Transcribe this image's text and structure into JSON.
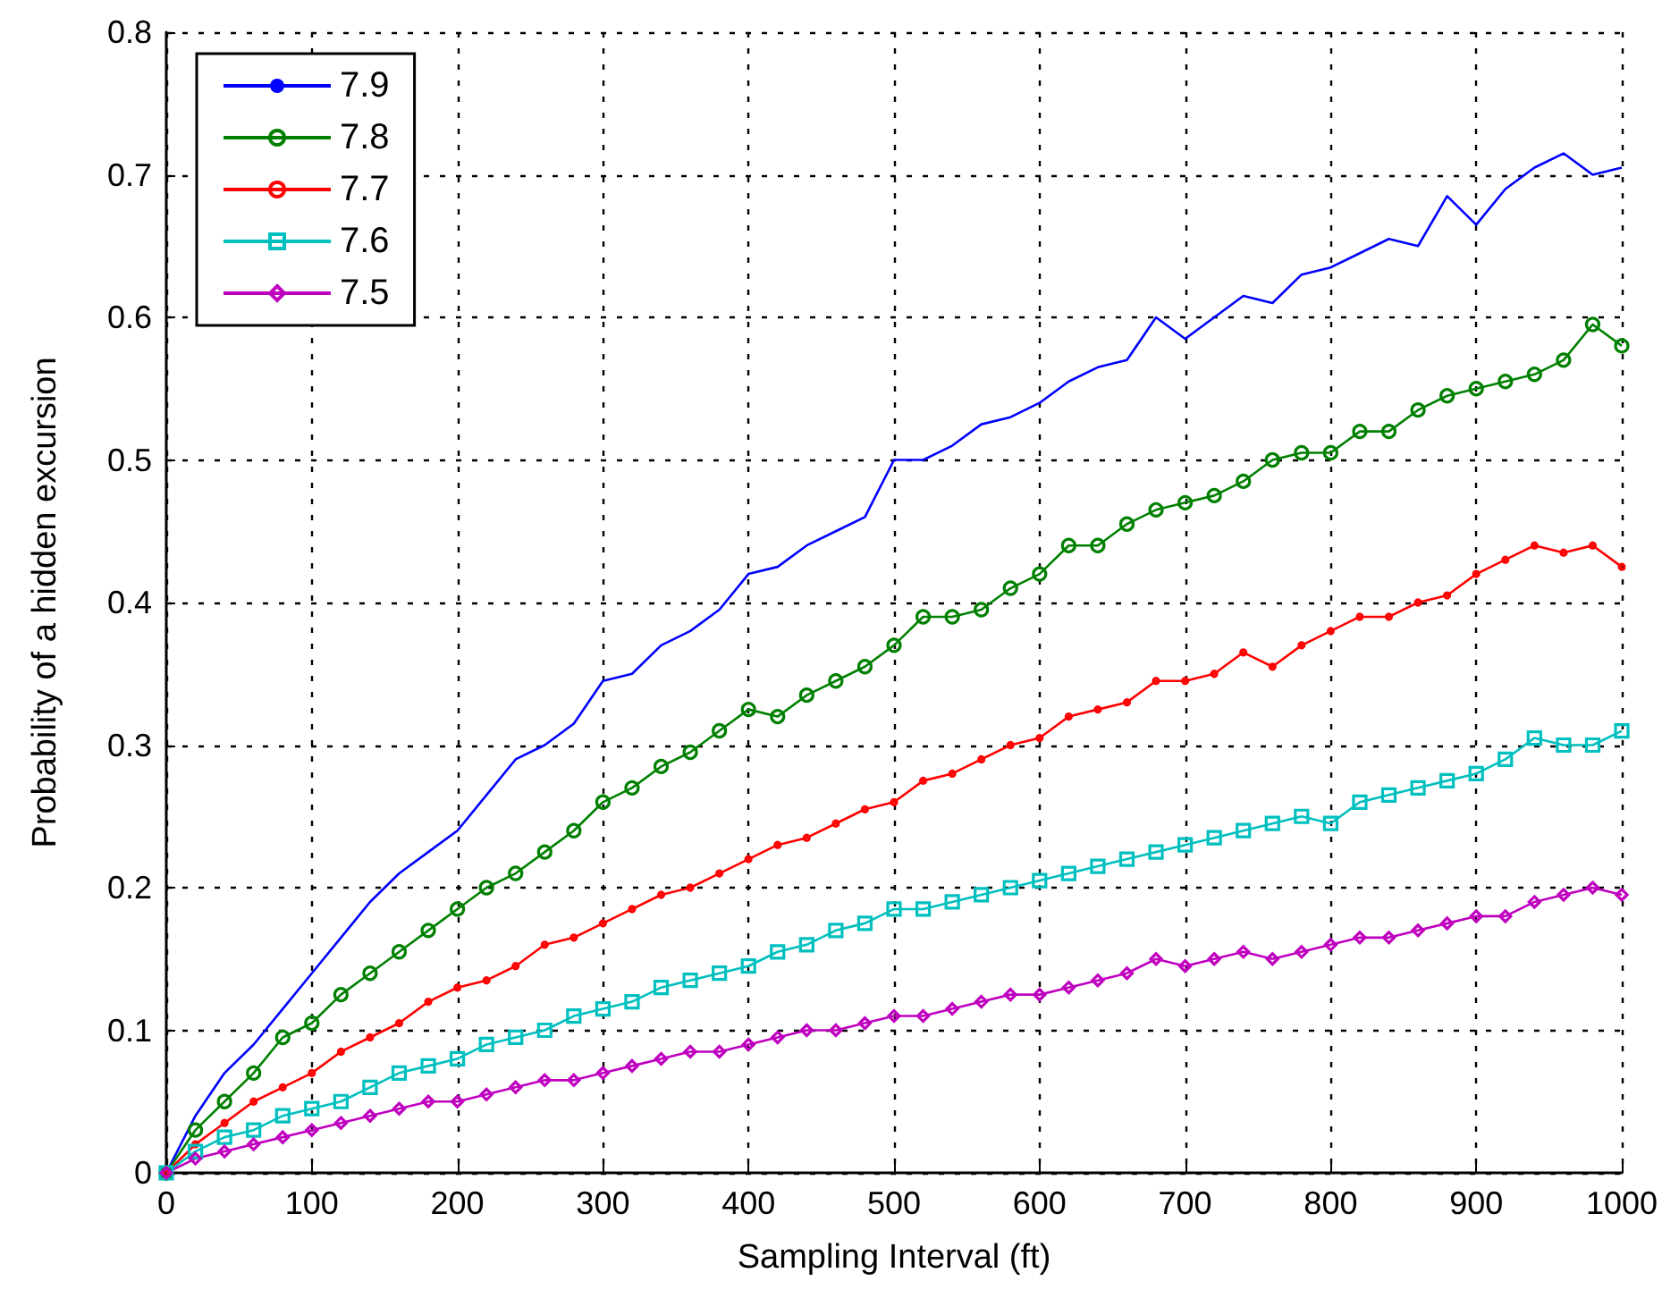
{
  "chart_data": {
    "type": "line",
    "xlabel": "Sampling Interval (ft)",
    "ylabel": "Probability of a hidden excursion",
    "x": [
      0,
      20,
      40,
      60,
      80,
      100,
      120,
      140,
      160,
      180,
      200,
      220,
      240,
      260,
      280,
      300,
      320,
      340,
      360,
      380,
      400,
      420,
      440,
      460,
      480,
      500,
      520,
      540,
      560,
      580,
      600,
      620,
      640,
      660,
      680,
      700,
      720,
      740,
      760,
      780,
      800,
      820,
      840,
      860,
      880,
      900,
      920,
      940,
      960,
      980,
      1000
    ],
    "series": [
      {
        "name": "7.9",
        "color": "#0000ff",
        "marker": "none",
        "values": [
          0,
          0.04,
          0.07,
          0.09,
          0.115,
          0.14,
          0.165,
          0.19,
          0.21,
          0.225,
          0.24,
          0.265,
          0.29,
          0.3,
          0.315,
          0.345,
          0.35,
          0.37,
          0.38,
          0.395,
          0.42,
          0.425,
          0.44,
          0.45,
          0.46,
          0.5,
          0.5,
          0.51,
          0.525,
          0.53,
          0.54,
          0.555,
          0.565,
          0.57,
          0.6,
          0.585,
          0.6,
          0.615,
          0.61,
          0.63,
          0.635,
          0.645,
          0.655,
          0.65,
          0.685,
          0.665,
          0.69,
          0.705,
          0.715,
          0.7,
          0.705
        ]
      },
      {
        "name": "7.8",
        "color": "#008000",
        "marker": "circle",
        "values": [
          0,
          0.03,
          0.05,
          0.07,
          0.095,
          0.105,
          0.125,
          0.14,
          0.155,
          0.17,
          0.185,
          0.2,
          0.21,
          0.225,
          0.24,
          0.26,
          0.27,
          0.285,
          0.295,
          0.31,
          0.325,
          0.32,
          0.335,
          0.345,
          0.355,
          0.37,
          0.39,
          0.39,
          0.395,
          0.41,
          0.42,
          0.44,
          0.44,
          0.455,
          0.465,
          0.47,
          0.475,
          0.485,
          0.5,
          0.505,
          0.505,
          0.52,
          0.52,
          0.535,
          0.545,
          0.55,
          0.555,
          0.56,
          0.57,
          0.595,
          0.58
        ]
      },
      {
        "name": "7.7",
        "color": "#ff0000",
        "marker": "circle",
        "values": [
          0,
          0.02,
          0.035,
          0.05,
          0.06,
          0.07,
          0.085,
          0.095,
          0.105,
          0.12,
          0.13,
          0.135,
          0.145,
          0.16,
          0.165,
          0.175,
          0.185,
          0.195,
          0.2,
          0.21,
          0.22,
          0.23,
          0.235,
          0.245,
          0.255,
          0.26,
          0.275,
          0.28,
          0.29,
          0.3,
          0.305,
          0.32,
          0.325,
          0.33,
          0.345,
          0.345,
          0.35,
          0.365,
          0.355,
          0.37,
          0.38,
          0.39,
          0.39,
          0.4,
          0.405,
          0.42,
          0.43,
          0.44,
          0.435,
          0.44,
          0.425
        ]
      },
      {
        "name": "7.6",
        "color": "#00bfbf",
        "marker": "square",
        "values": [
          0,
          0.015,
          0.025,
          0.03,
          0.04,
          0.045,
          0.05,
          0.06,
          0.07,
          0.075,
          0.08,
          0.09,
          0.095,
          0.1,
          0.11,
          0.115,
          0.12,
          0.13,
          0.135,
          0.14,
          0.145,
          0.155,
          0.16,
          0.17,
          0.175,
          0.185,
          0.185,
          0.19,
          0.195,
          0.2,
          0.205,
          0.21,
          0.215,
          0.22,
          0.225,
          0.23,
          0.235,
          0.24,
          0.245,
          0.25,
          0.245,
          0.26,
          0.265,
          0.27,
          0.275,
          0.28,
          0.29,
          0.305,
          0.3,
          0.3,
          0.31
        ]
      },
      {
        "name": "7.5",
        "color": "#bf00bf",
        "marker": "diamond",
        "values": [
          0,
          0.01,
          0.015,
          0.02,
          0.025,
          0.03,
          0.035,
          0.04,
          0.045,
          0.05,
          0.05,
          0.055,
          0.06,
          0.065,
          0.065,
          0.07,
          0.075,
          0.08,
          0.085,
          0.085,
          0.09,
          0.095,
          0.1,
          0.1,
          0.105,
          0.11,
          0.11,
          0.115,
          0.12,
          0.125,
          0.125,
          0.13,
          0.135,
          0.14,
          0.15,
          0.145,
          0.15,
          0.155,
          0.15,
          0.155,
          0.16,
          0.165,
          0.165,
          0.17,
          0.175,
          0.18,
          0.18,
          0.19,
          0.195,
          0.2,
          0.195
        ]
      }
    ],
    "xlim": [
      0,
      1000
    ],
    "xticks": [
      0,
      100,
      200,
      300,
      400,
      500,
      600,
      700,
      800,
      900,
      1000
    ],
    "ylim": [
      0,
      0.8
    ],
    "yticks": [
      0,
      0.1,
      0.2,
      0.3,
      0.4,
      0.5,
      0.6,
      0.7,
      0.8
    ],
    "grid": true,
    "legend": "top left",
    "line_style": "solid"
  }
}
